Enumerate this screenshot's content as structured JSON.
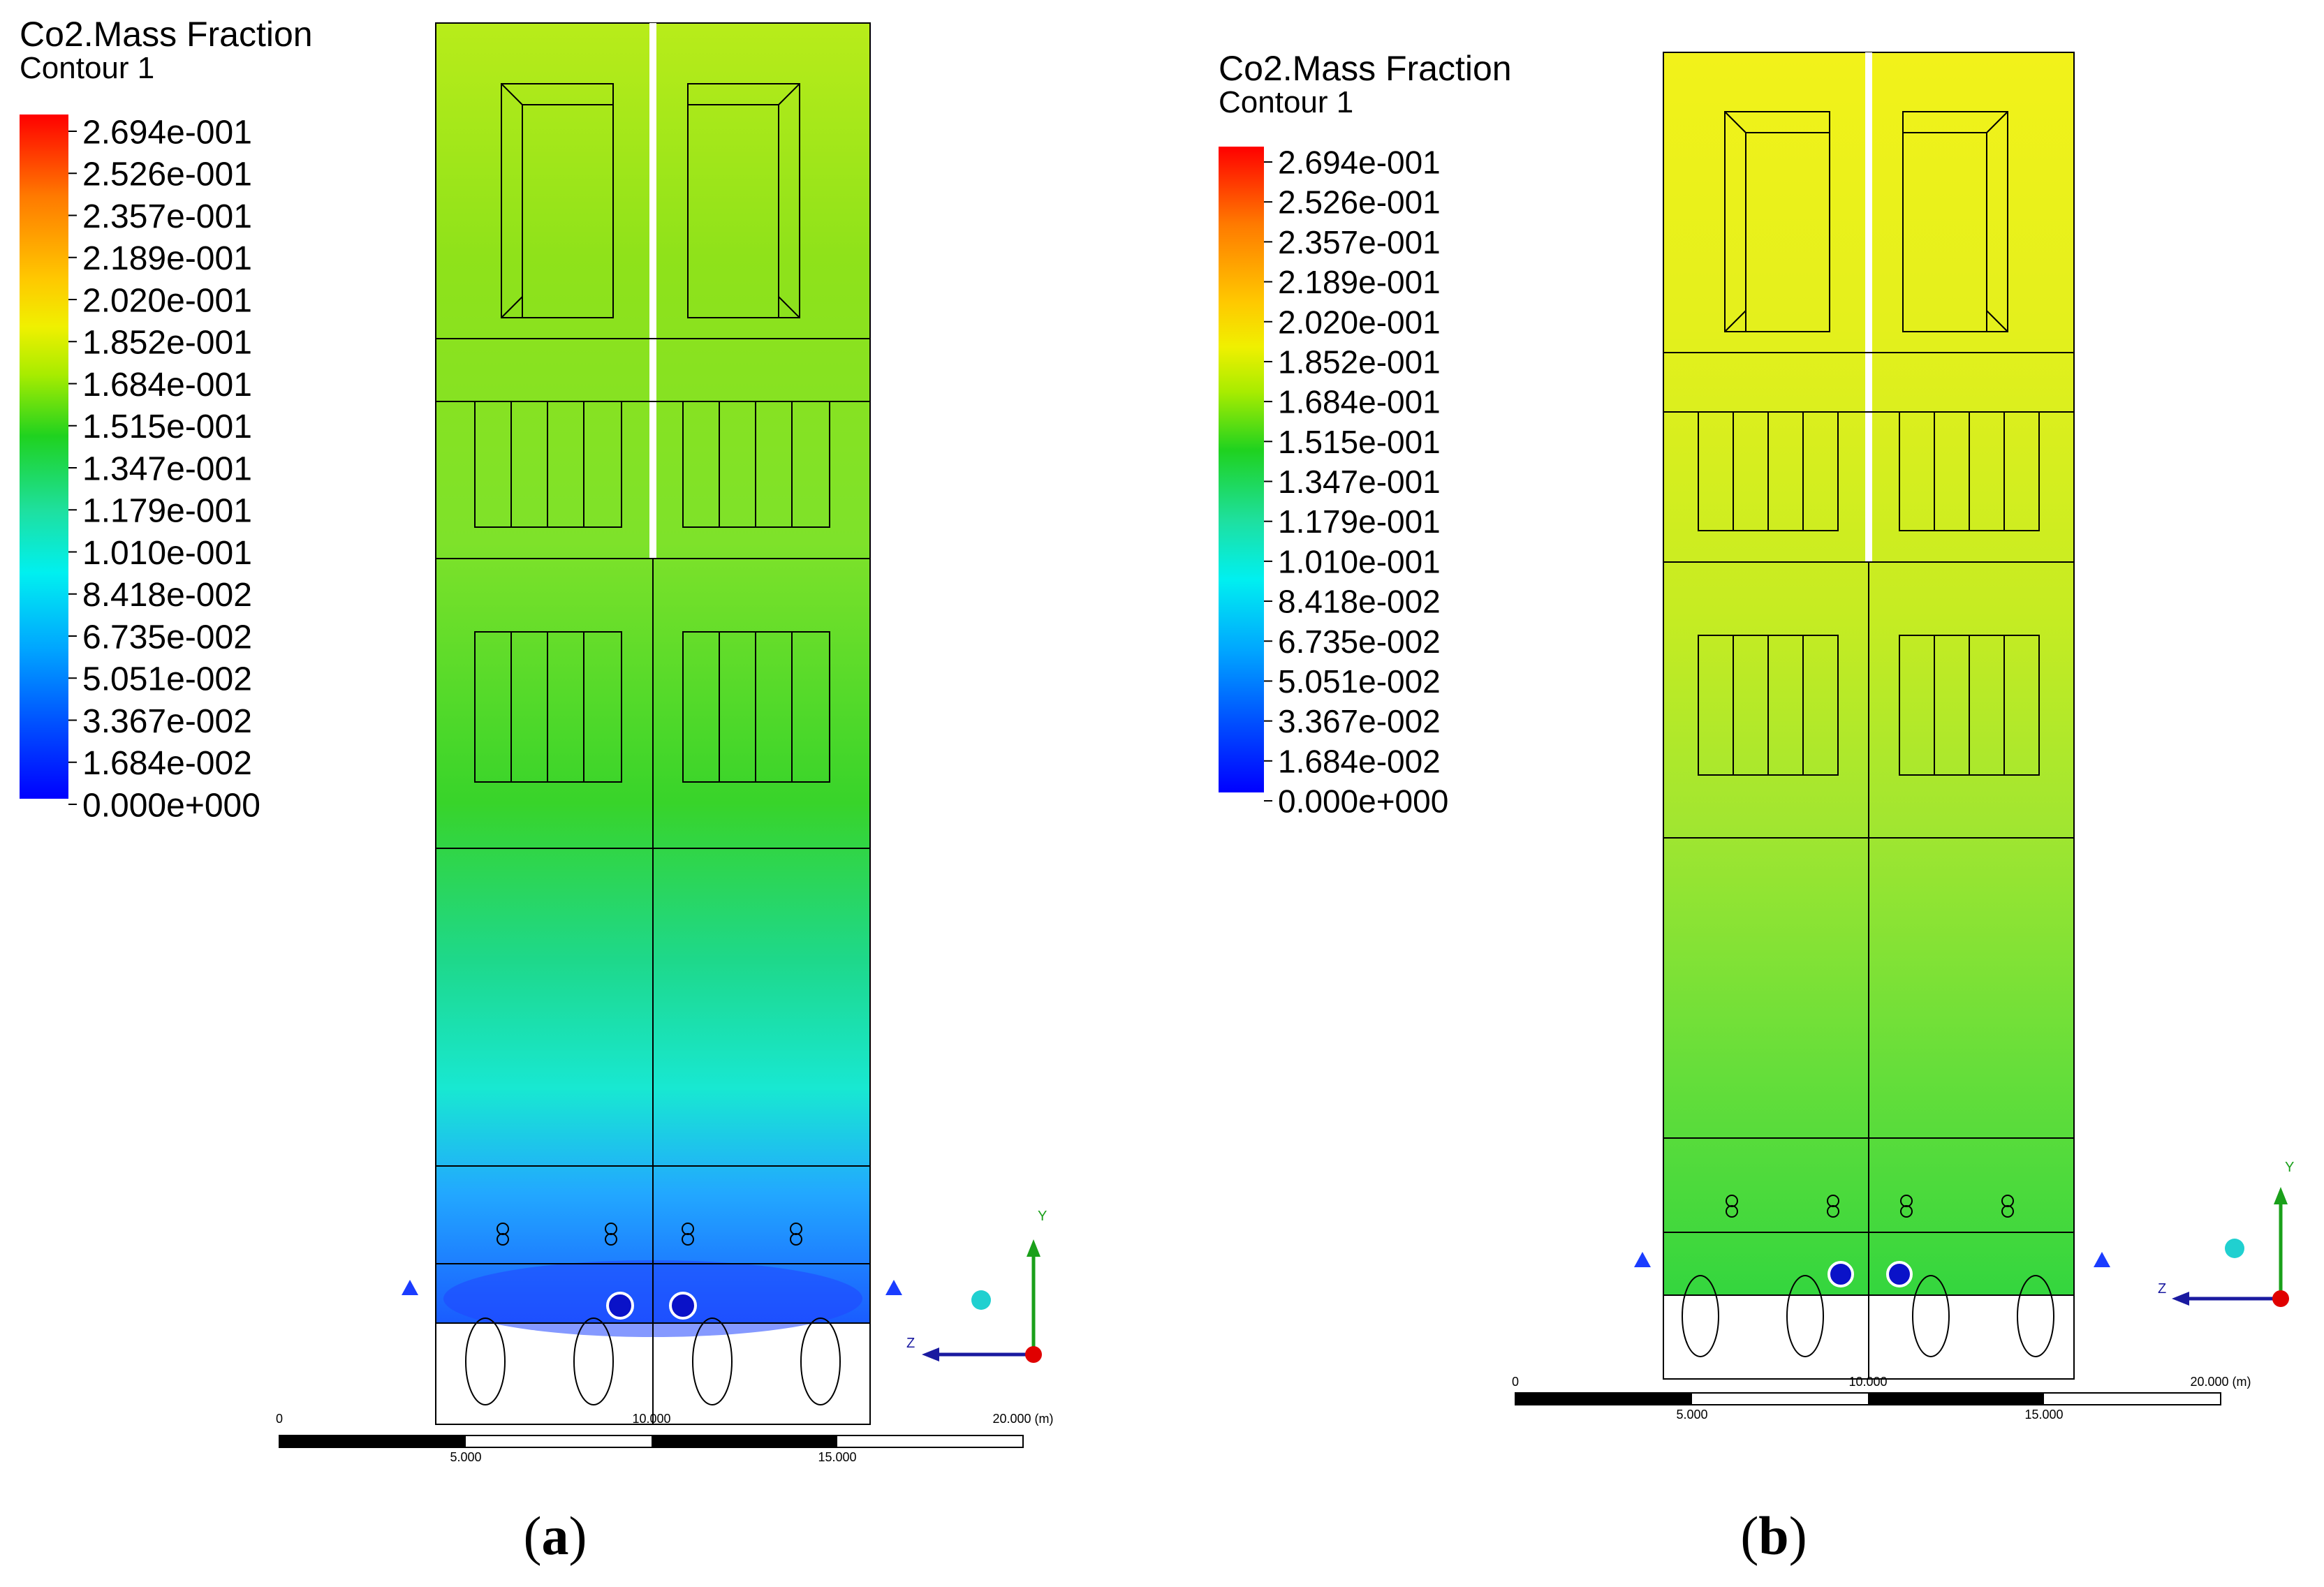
{
  "panels": [
    {
      "id": "a",
      "legend": {
        "title": "Co2.Mass Fraction",
        "subtitle": "Contour 1",
        "ticks": [
          "2.694e-001",
          "2.526e-001",
          "2.357e-001",
          "2.189e-001",
          "2.020e-001",
          "1.852e-001",
          "1.684e-001",
          "1.515e-001",
          "1.347e-001",
          "1.179e-001",
          "1.010e-001",
          "8.418e-002",
          "6.735e-002",
          "5.051e-002",
          "3.367e-002",
          "1.684e-002",
          "0.000e+000"
        ]
      },
      "scale": {
        "labels_top": [
          "0",
          "10.000",
          "20.000  (m)"
        ],
        "labels_bottom": [
          "5.000",
          "15.000"
        ]
      },
      "axes": {
        "y": "Y",
        "z": "Z"
      },
      "caption_letter": "a"
    },
    {
      "id": "b",
      "legend": {
        "title": "Co2.Mass Fraction",
        "subtitle": "Contour 1",
        "ticks": [
          "2.694e-001",
          "2.526e-001",
          "2.357e-001",
          "2.189e-001",
          "2.020e-001",
          "1.852e-001",
          "1.684e-001",
          "1.515e-001",
          "1.347e-001",
          "1.179e-001",
          "1.010e-001",
          "8.418e-002",
          "6.735e-002",
          "5.051e-002",
          "3.367e-002",
          "1.684e-002",
          "0.000e+000"
        ]
      },
      "scale": {
        "labels_top": [
          "0",
          "10.000",
          "20.000  (m)"
        ],
        "labels_bottom": [
          "5.000",
          "15.000"
        ]
      },
      "axes": {
        "y": "Y",
        "z": "Z"
      },
      "caption_letter": "b"
    }
  ],
  "colorbar_colors": [
    "#ff0000",
    "#ff4d00",
    "#ff8c00",
    "#ffb400",
    "#ffe000",
    "#d8f000",
    "#8ee800",
    "#22d400",
    "#1ed264",
    "#21e0b0",
    "#00f0f0",
    "#00c4ff",
    "#0096ff",
    "#0064ff",
    "#0032ff",
    "#0000ff"
  ]
}
